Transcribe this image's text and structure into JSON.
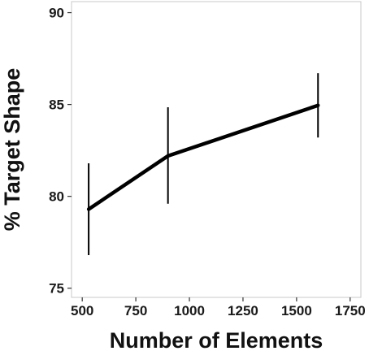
{
  "chart_data": {
    "type": "line",
    "xlabel": "Number of Elements",
    "ylabel": "% Target Shape",
    "xlim": [
      450,
      1800
    ],
    "ylim": [
      74.5,
      90.6
    ],
    "xticks": [
      500,
      750,
      1000,
      1250,
      1500,
      1750
    ],
    "xtick_labels": [
      "500",
      "750",
      "1000",
      "1250",
      "1500",
      "1750"
    ],
    "yticks": [
      75,
      80,
      85,
      90
    ],
    "ytick_labels": [
      "75",
      "80",
      "85",
      "90"
    ],
    "grid": false,
    "series": [
      {
        "x": [
          530,
          900,
          1600
        ],
        "y": [
          79.3,
          82.2,
          84.95
        ],
        "error_low": [
          76.8,
          79.6,
          83.2
        ],
        "error_high": [
          81.8,
          84.85,
          86.7
        ]
      }
    ],
    "colors": {
      "line": "#000000",
      "frame": "#c8c8c8",
      "tick": "#333333"
    }
  }
}
